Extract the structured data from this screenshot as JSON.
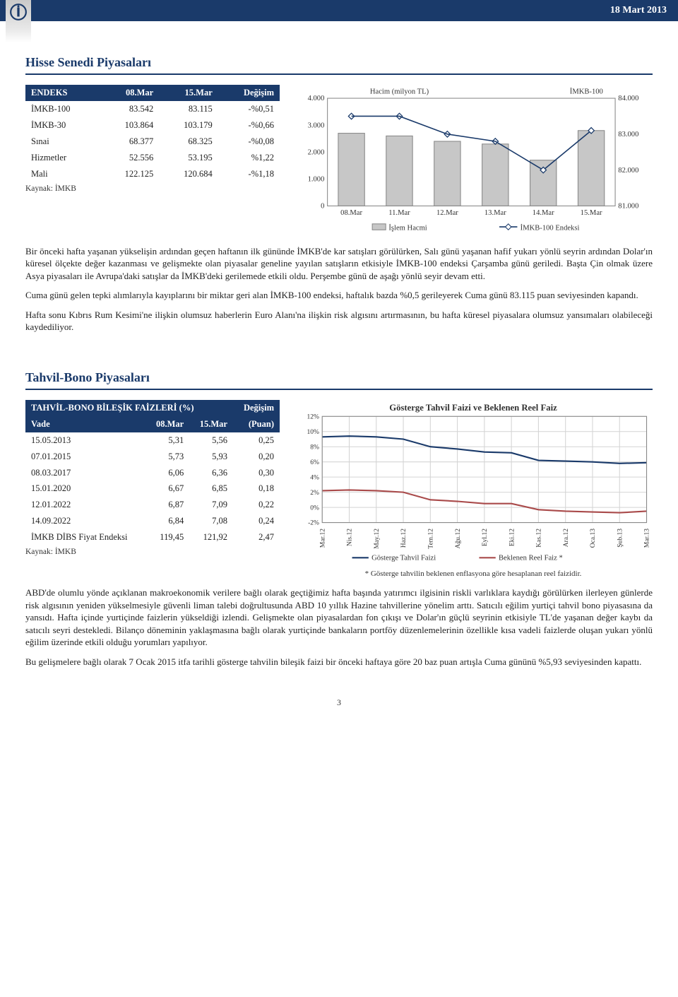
{
  "header": {
    "date": "18 Mart 2013"
  },
  "section1": {
    "title": "Hisse Senedi Piyasaları",
    "table": {
      "title": "",
      "columns": [
        "ENDEKS",
        "08.Mar",
        "15.Mar",
        "Değişim"
      ],
      "rows": [
        [
          "İMKB-100",
          "83.542",
          "83.115",
          "-%0,51"
        ],
        [
          "İMKB-30",
          "103.864",
          "103.179",
          "-%0,66"
        ],
        [
          "Sınai",
          "68.377",
          "68.325",
          "-%0,08"
        ],
        [
          "Hizmetler",
          "52.556",
          "53.195",
          "%1,22"
        ],
        [
          "Mali",
          "122.125",
          "120.684",
          "-%1,18"
        ]
      ],
      "source": "Kaynak: İMKB"
    },
    "chart": {
      "type": "combo-bar-line",
      "title_left": "Hacim (milyon TL)",
      "title_right": "İMKB-100",
      "categories": [
        "08.Mar",
        "11.Mar",
        "12.Mar",
        "13.Mar",
        "14.Mar",
        "15.Mar"
      ],
      "bars": [
        2700,
        2600,
        2400,
        2300,
        1700,
        2800
      ],
      "bar_color": "#c7c7c7",
      "bar_border": "#888",
      "line": [
        83.5,
        83.5,
        83.0,
        82.8,
        82.0,
        83.1
      ],
      "line_color": "#1a3a6a",
      "marker_color": "#1a3a6a",
      "left_axis": {
        "min": 0,
        "max": 4000,
        "ticks": [
          0,
          1000,
          2000,
          3000,
          4000
        ],
        "labels": [
          "0",
          "1.000",
          "2.000",
          "3.000",
          "4.000"
        ]
      },
      "right_axis": {
        "min": 81.0,
        "max": 84.0,
        "ticks": [
          81.0,
          82.0,
          83.0,
          84.0
        ],
        "labels": [
          "81.000",
          "82.000",
          "83.000",
          "84.000"
        ]
      },
      "legend": {
        "bar": "İşlem Hacmi",
        "line": "İMKB-100 Endeksi"
      },
      "background_color": "#ffffff",
      "grid_color": "#e0e0e0",
      "label_fontsize": 10
    },
    "paragraphs": [
      "Bir önceki hafta yaşanan yükselişin ardından geçen haftanın ilk gününde İMKB'de kar satışları görülürken, Salı günü yaşanan hafif yukarı yönlü seyrin ardından Dolar'ın küresel ölçekte değer kazanması ve gelişmekte olan piyasalar geneline yayılan satışların etkisiyle İMKB-100 endeksi Çarşamba günü geriledi. Başta Çin olmak üzere Asya piyasaları ile Avrupa'daki satışlar da İMKB'deki gerilemede etkili oldu. Perşembe günü de aşağı yönlü seyir devam etti.",
      "Cuma günü gelen tepki alımlarıyla kayıplarını bir miktar geri alan İMKB-100 endeksi, haftalık bazda %0,5 gerileyerek Cuma günü 83.115 puan seviyesinden kapandı.",
      "Hafta sonu Kıbrıs Rum Kesimi'ne ilişkin olumsuz haberlerin Euro Alanı'na ilişkin risk algısını artırmasının, bu hafta küresel piyasalara olumsuz yansımaları olabileceği kaydediliyor."
    ]
  },
  "section2": {
    "title": "Tahvil-Bono Piyasaları",
    "table": {
      "title": "TAHVİL-BONO BİLEŞİK FAİZLERİ (%)",
      "columns": [
        "Vade",
        "08.Mar",
        "15.Mar",
        "Değişim\n(Puan)"
      ],
      "rows": [
        [
          "15.05.2013",
          "5,31",
          "5,56",
          "0,25"
        ],
        [
          "07.01.2015",
          "5,73",
          "5,93",
          "0,20"
        ],
        [
          "08.03.2017",
          "6,06",
          "6,36",
          "0,30"
        ],
        [
          "15.01.2020",
          "6,67",
          "6,85",
          "0,18"
        ],
        [
          "12.01.2022",
          "6,87",
          "7,09",
          "0,22"
        ],
        [
          "14.09.2022",
          "6,84",
          "7,08",
          "0,24"
        ],
        [
          "İMKB DİBS Fiyat Endeksi",
          "119,45",
          "121,92",
          "2,47"
        ]
      ],
      "source": "Kaynak: İMKB"
    },
    "chart": {
      "type": "line",
      "title": "Gösterge Tahvil Faizi ve Beklenen Reel Faiz",
      "categories": [
        "Mar.12",
        "Nis.12",
        "May.12",
        "Haz.12",
        "Tem.12",
        "Ağu.12",
        "Eyl.12",
        "Eki.12",
        "Kas.12",
        "Ara.12",
        "Oca.13",
        "Şub.13",
        "Mar.13"
      ],
      "series": [
        {
          "name": "Gösterge Tahvil Faizi",
          "color": "#1a3a6a",
          "values": [
            9.3,
            9.4,
            9.3,
            9.0,
            8.0,
            7.7,
            7.3,
            7.2,
            6.2,
            6.1,
            6.0,
            5.8,
            5.9
          ]
        },
        {
          "name": "Beklenen Reel Faiz *",
          "color": "#a94a4a",
          "values": [
            2.2,
            2.3,
            2.2,
            2.0,
            1.0,
            0.8,
            0.5,
            0.5,
            -0.3,
            -0.5,
            -0.6,
            -0.7,
            -0.5
          ]
        }
      ],
      "y_axis": {
        "min": -2,
        "max": 12,
        "ticks": [
          -2,
          0,
          2,
          4,
          6,
          8,
          10,
          12
        ],
        "labels": [
          "-2%",
          "0%",
          "2%",
          "4%",
          "6%",
          "8%",
          "10%",
          "12%"
        ]
      },
      "background_color": "#ffffff",
      "grid_color": "#d4d4d4",
      "label_fontsize": 9,
      "footnote": "* Gösterge tahvilin beklenen enflasyona göre hesaplanan reel faizidir."
    },
    "paragraphs": [
      "ABD'de olumlu yönde açıklanan makroekonomik verilere bağlı olarak geçtiğimiz hafta başında yatırımcı ilgisinin riskli varlıklara kaydığı görülürken ilerleyen günlerde risk algısının yeniden yükselmesiyle güvenli liman talebi doğrultusunda ABD 10 yıllık Hazine tahvillerine yönelim arttı. Satıcılı eğilim yurtiçi tahvil bono piyasasına da yansıdı. Hafta içinde yurtiçinde faizlerin yükseldiği izlendi. Gelişmekte olan piyasalardan fon çıkışı ve Dolar'ın güçlü seyrinin etkisiyle TL'de yaşanan değer kaybı da satıcılı seyri destekledi. Bilanço döneminin yaklaşmasına bağlı olarak yurtiçinde bankaların portföy düzenlemelerinin özellikle kısa vadeli faizlerde oluşan yukarı yönlü eğilim üzerinde etkili olduğu yorumları yapılıyor.",
      "Bu gelişmelere bağlı olarak 7 Ocak 2015 itfa tarihli gösterge tahvilin bileşik faizi bir önceki haftaya göre 20 baz puan artışla Cuma gününü %5,93 seviyesinden kapattı."
    ]
  },
  "page_number": "3"
}
